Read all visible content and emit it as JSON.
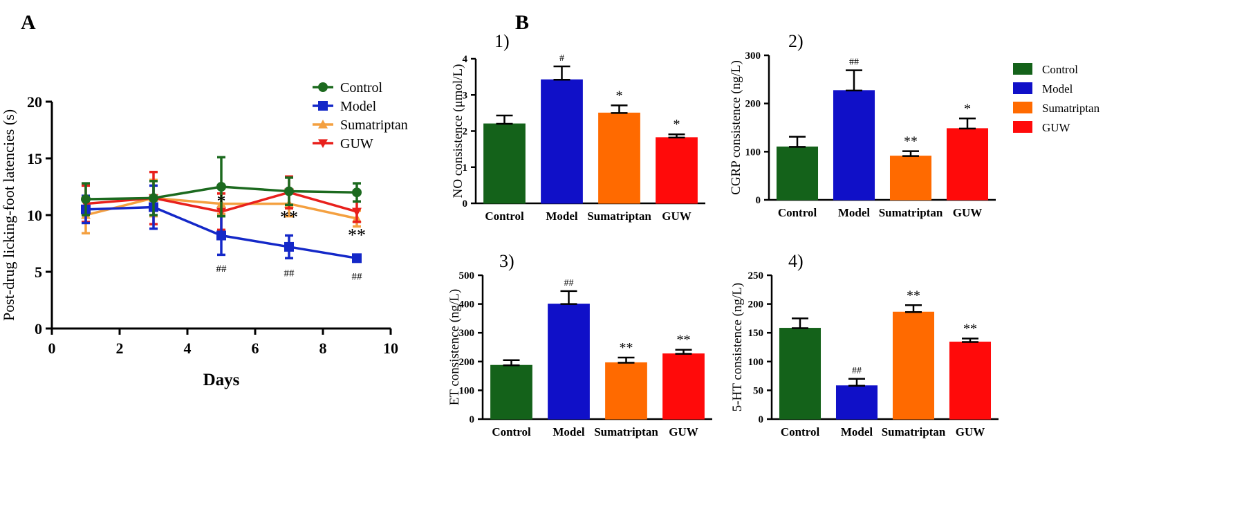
{
  "panel_a": {
    "letter": "A",
    "chart_data": {
      "type": "line",
      "title": "",
      "xlabel": "Days",
      "ylabel": "Post-drug licking-foot latencies (s)",
      "xlim": [
        0,
        10
      ],
      "ylim": [
        0,
        20
      ],
      "xticks": [
        0,
        2,
        4,
        6,
        8,
        10
      ],
      "yticks": [
        0,
        5,
        10,
        15,
        20
      ],
      "x": [
        1,
        3,
        5,
        7,
        9
      ],
      "legend_position": "top-right",
      "series": [
        {
          "name": "Control",
          "color": "#1c6a1f",
          "marker": "circle",
          "values": [
            11.4,
            11.5,
            12.5,
            12.1,
            12.0
          ],
          "errors": [
            1.4,
            1.5,
            2.6,
            1.2,
            0.8
          ]
        },
        {
          "name": "Model",
          "color": "#1428c8",
          "marker": "square",
          "values": [
            10.5,
            10.7,
            8.2,
            7.2,
            6.2
          ],
          "errors": [
            1.2,
            1.9,
            1.7,
            1.0,
            0.2
          ]
        },
        {
          "name": "Sumatriptan",
          "color": "#f4a040",
          "marker": "triangle-up",
          "values": [
            10.0,
            11.5,
            11.0,
            11.0,
            9.7
          ],
          "errors": [
            1.6,
            1.6,
            0.9,
            1.1,
            0.7
          ]
        },
        {
          "name": "GUW",
          "color": "#e8201c",
          "marker": "triangle-down",
          "values": [
            11.0,
            11.5,
            10.3,
            12.0,
            10.3
          ],
          "errors": [
            1.6,
            2.3,
            1.6,
            1.4,
            0.9
          ]
        }
      ],
      "annotations": [
        {
          "x": 5,
          "y": 10.7,
          "text": "*",
          "size": 26
        },
        {
          "x": 7,
          "y": 9.3,
          "text": "**",
          "size": 26
        },
        {
          "x": 9,
          "y": 7.7,
          "text": "**",
          "size": 26
        },
        {
          "x": 5,
          "y": 5.0,
          "text": "##",
          "size": 15
        },
        {
          "x": 7,
          "y": 4.6,
          "text": "##",
          "size": 15
        },
        {
          "x": 9,
          "y": 4.3,
          "text": "##",
          "size": 15
        }
      ]
    }
  },
  "panel_b": {
    "letter": "B",
    "legend": [
      {
        "name": "Control",
        "color": "#14621a"
      },
      {
        "name": "Model",
        "color": "#1010c8"
      },
      {
        "name": "Sumatriptan",
        "color": "#ff6a00"
      },
      {
        "name": "GUW",
        "color": "#ff0a0a"
      }
    ],
    "chart_data": [
      {
        "type": "bar",
        "label": "1)",
        "ylabel": "NO consistence (μmol/L)",
        "categories": [
          "Control",
          "Model",
          "Sumatriptan",
          "GUW"
        ],
        "values": [
          2.2,
          3.42,
          2.5,
          1.82
        ],
        "errors": [
          0.23,
          0.37,
          0.21,
          0.09
        ],
        "marks": [
          "",
          "#",
          "*",
          "*"
        ],
        "ylim": [
          0,
          4
        ],
        "yticks": [
          0,
          1,
          2,
          3,
          4
        ]
      },
      {
        "type": "bar",
        "label": "2)",
        "ylabel": "CGRP consistence (ng/L)",
        "categories": [
          "Control",
          "Model",
          "Sumatriptan",
          "GUW"
        ],
        "values": [
          110,
          227,
          91,
          148
        ],
        "errors": [
          21,
          42,
          10,
          21
        ],
        "marks": [
          "",
          "##",
          "**",
          "*"
        ],
        "ylim": [
          0,
          300
        ],
        "yticks": [
          0,
          100,
          200,
          300
        ]
      },
      {
        "type": "bar",
        "label": "3)",
        "ylabel": "ET consistence (ng/L)",
        "categories": [
          "Control",
          "Model",
          "Sumatriptan",
          "GUW"
        ],
        "values": [
          187,
          400,
          196,
          227
        ],
        "errors": [
          18,
          45,
          18,
          14
        ],
        "marks": [
          "",
          "##",
          "**",
          "**"
        ],
        "ylim": [
          0,
          500
        ],
        "yticks": [
          0,
          100,
          200,
          300,
          400,
          500
        ]
      },
      {
        "type": "bar",
        "label": "4)",
        "ylabel": "5-HT consistence (ng/L)",
        "categories": [
          "Control",
          "Model",
          "Sumatriptan",
          "GUW"
        ],
        "values": [
          158,
          58,
          186,
          134
        ],
        "errors": [
          17,
          12,
          12,
          6
        ],
        "marks": [
          "",
          "##",
          "**",
          "**"
        ],
        "ylim": [
          0,
          250
        ],
        "yticks": [
          0,
          50,
          100,
          150,
          200,
          250
        ]
      }
    ]
  }
}
